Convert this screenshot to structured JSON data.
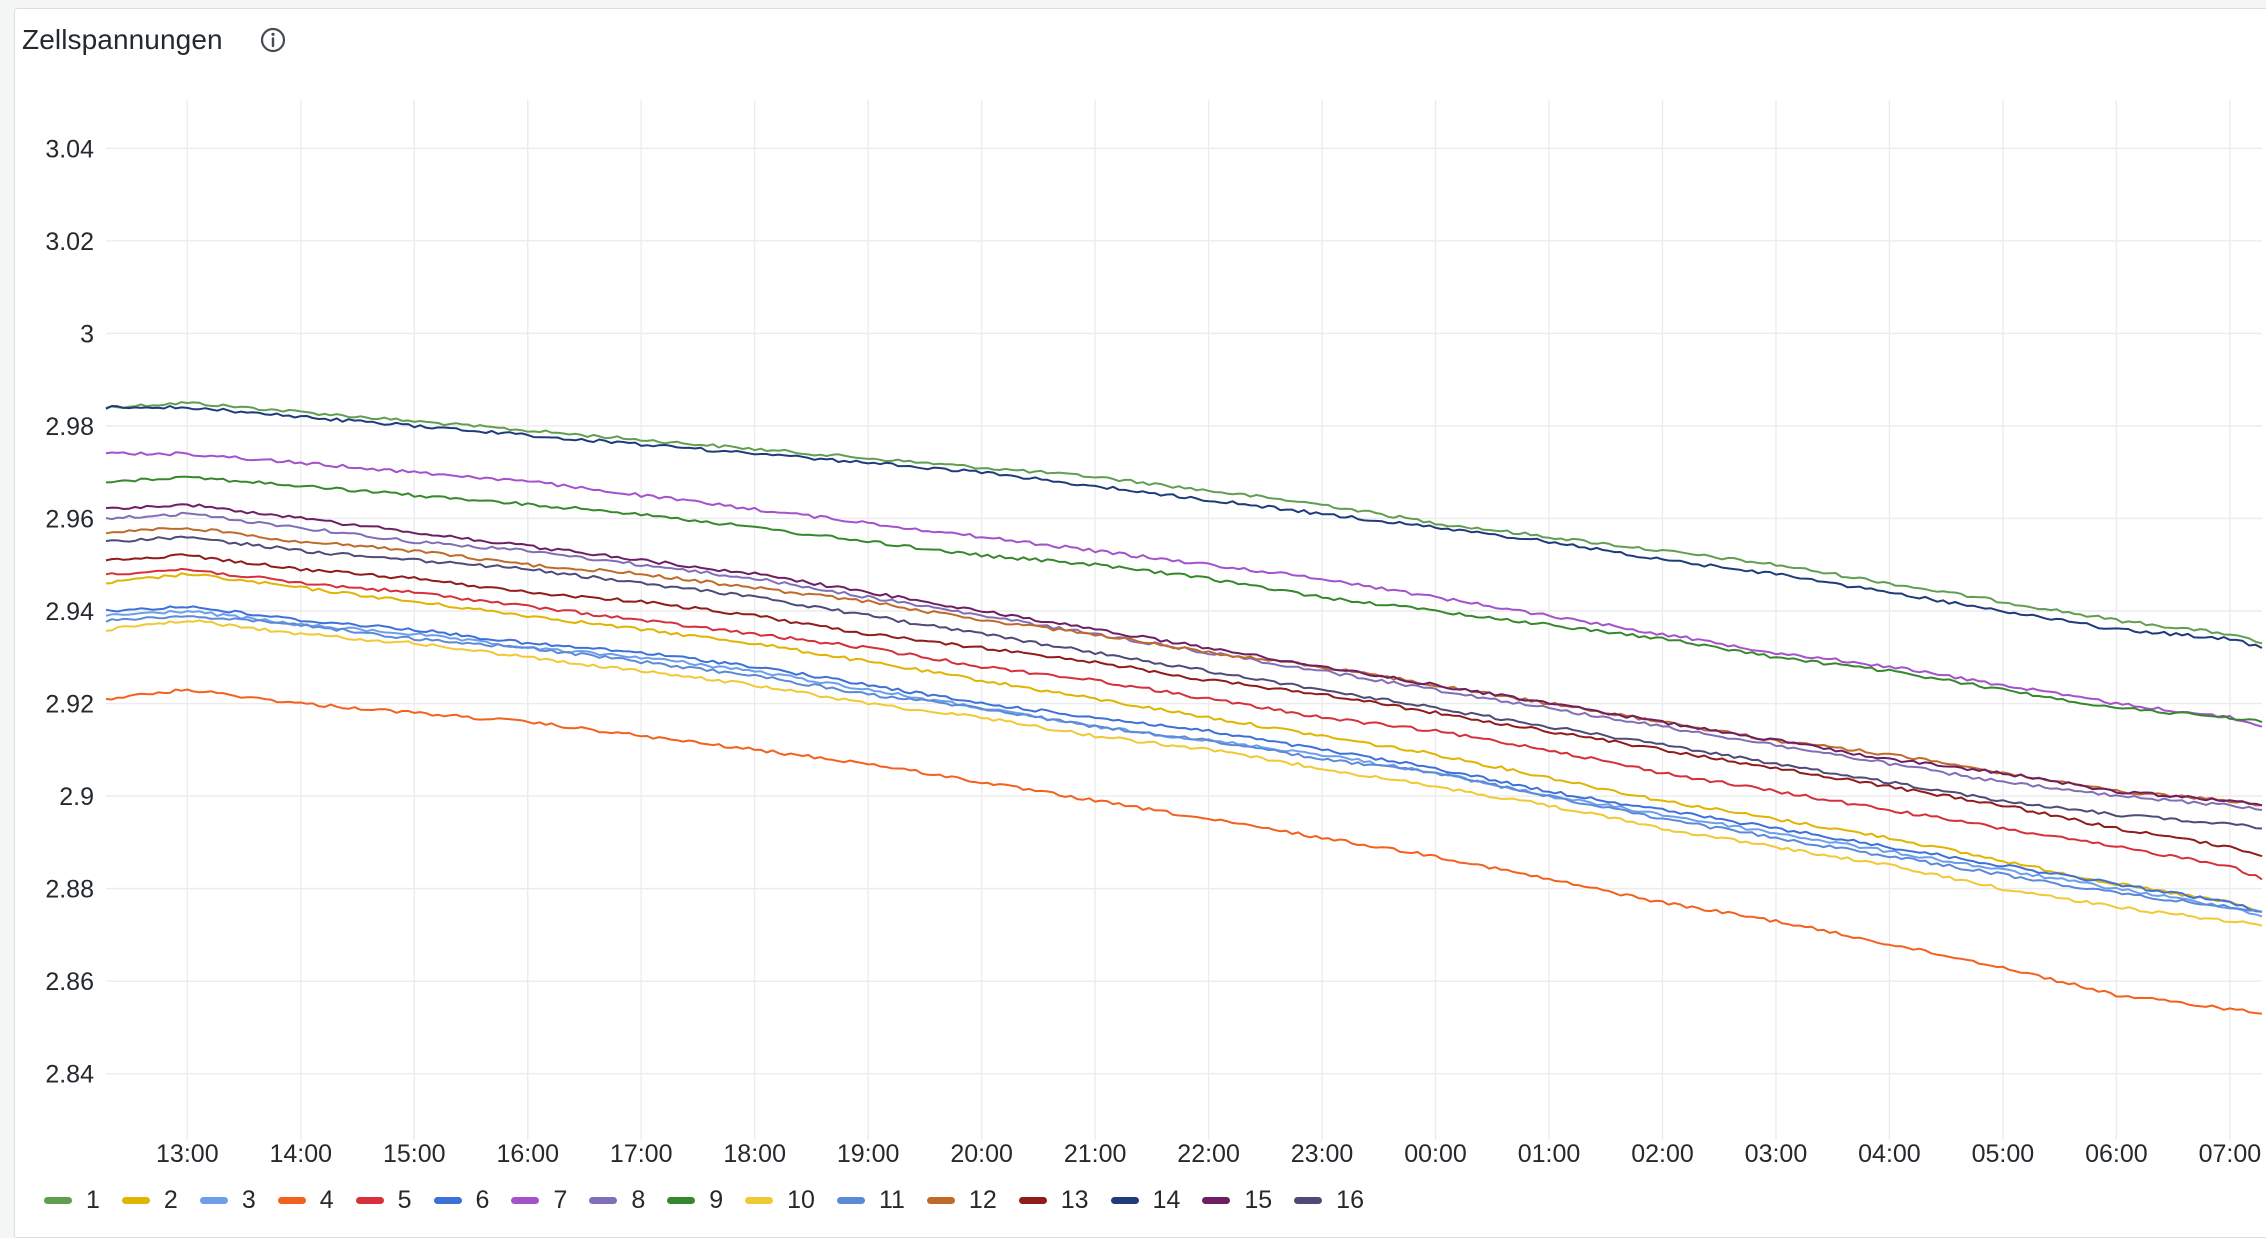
{
  "panel": {
    "title": "Zellspannungen",
    "info_icon": "info-circle-icon"
  },
  "chart_data": {
    "type": "line",
    "title": "Zellspannungen",
    "xlabel": "",
    "ylabel": "",
    "x_ticks": [
      "13:00",
      "14:00",
      "15:00",
      "16:00",
      "17:00",
      "18:00",
      "19:00",
      "20:00",
      "21:00",
      "22:00",
      "23:00",
      "00:00",
      "01:00",
      "02:00",
      "03:00",
      "04:00",
      "05:00",
      "06:00",
      "07:00"
    ],
    "x_range": [
      "12:17",
      "07:17"
    ],
    "y_ticks": [
      "2.84",
      "2.86",
      "2.88",
      "2.9",
      "2.92",
      "2.94",
      "2.96",
      "2.98",
      "3",
      "3.02",
      "3.04"
    ],
    "ylim": [
      2.83,
      3.05
    ],
    "grid": true,
    "legend_position": "bottom-left",
    "x": [
      "12:17",
      "13:00",
      "14:00",
      "15:00",
      "16:00",
      "17:00",
      "18:00",
      "19:00",
      "20:00",
      "21:00",
      "22:00",
      "23:00",
      "00:00",
      "01:00",
      "02:00",
      "03:00",
      "04:00",
      "05:00",
      "06:00",
      "07:00",
      "07:17"
    ],
    "series": [
      {
        "name": "1",
        "color": "#629e51",
        "values": [
          2.984,
          2.985,
          2.983,
          2.981,
          2.979,
          2.977,
          2.975,
          2.973,
          2.971,
          2.969,
          2.966,
          2.963,
          2.959,
          2.956,
          2.953,
          2.95,
          2.946,
          2.942,
          2.938,
          2.935,
          2.933
        ]
      },
      {
        "name": "2",
        "color": "#e0b400",
        "values": [
          2.946,
          2.948,
          2.945,
          2.942,
          2.939,
          2.936,
          2.933,
          2.929,
          2.925,
          2.921,
          2.917,
          2.913,
          2.909,
          2.904,
          2.899,
          2.895,
          2.891,
          2.886,
          2.881,
          2.877,
          2.875
        ]
      },
      {
        "name": "3",
        "color": "#6d9eeb",
        "values": [
          2.939,
          2.94,
          2.937,
          2.935,
          2.932,
          2.93,
          2.927,
          2.923,
          2.919,
          2.915,
          2.912,
          2.909,
          2.905,
          2.9,
          2.896,
          2.892,
          2.888,
          2.884,
          2.88,
          2.876,
          2.874
        ]
      },
      {
        "name": "4",
        "color": "#f2611d",
        "values": [
          2.921,
          2.923,
          2.92,
          2.918,
          2.916,
          2.913,
          2.91,
          2.907,
          2.903,
          2.899,
          2.895,
          2.891,
          2.887,
          2.882,
          2.877,
          2.873,
          2.868,
          2.863,
          2.857,
          2.854,
          2.853
        ]
      },
      {
        "name": "5",
        "color": "#d6303a",
        "values": [
          2.948,
          2.949,
          2.946,
          2.944,
          2.941,
          2.938,
          2.935,
          2.932,
          2.928,
          2.925,
          2.921,
          2.917,
          2.914,
          2.91,
          2.905,
          2.901,
          2.897,
          2.893,
          2.889,
          2.885,
          2.882
        ]
      },
      {
        "name": "6",
        "color": "#3d71d9",
        "values": [
          2.94,
          2.941,
          2.938,
          2.936,
          2.933,
          2.931,
          2.928,
          2.924,
          2.92,
          2.917,
          2.914,
          2.91,
          2.906,
          2.901,
          2.897,
          2.893,
          2.889,
          2.885,
          2.881,
          2.877,
          2.875
        ]
      },
      {
        "name": "7",
        "color": "#a352cc",
        "values": [
          2.974,
          2.974,
          2.972,
          2.97,
          2.968,
          2.965,
          2.962,
          2.959,
          2.956,
          2.953,
          2.95,
          2.947,
          2.943,
          2.939,
          2.935,
          2.931,
          2.928,
          2.924,
          2.92,
          2.917,
          2.915
        ]
      },
      {
        "name": "8",
        "color": "#806eb7",
        "values": [
          2.96,
          2.961,
          2.958,
          2.955,
          2.953,
          2.95,
          2.947,
          2.943,
          2.939,
          2.935,
          2.931,
          2.927,
          2.923,
          2.919,
          2.915,
          2.911,
          2.907,
          2.903,
          2.9,
          2.898,
          2.897
        ]
      },
      {
        "name": "9",
        "color": "#37872d",
        "values": [
          2.968,
          2.969,
          2.967,
          2.965,
          2.963,
          2.961,
          2.958,
          2.955,
          2.952,
          2.95,
          2.947,
          2.943,
          2.94,
          2.937,
          2.934,
          2.93,
          2.927,
          2.923,
          2.919,
          2.917,
          2.916
        ]
      },
      {
        "name": "10",
        "color": "#f0c934",
        "values": [
          2.936,
          2.938,
          2.935,
          2.933,
          2.93,
          2.927,
          2.924,
          2.92,
          2.917,
          2.913,
          2.91,
          2.906,
          2.902,
          2.898,
          2.893,
          2.889,
          2.885,
          2.88,
          2.876,
          2.873,
          2.872
        ]
      },
      {
        "name": "11",
        "color": "#5c8ad6",
        "values": [
          2.938,
          2.939,
          2.937,
          2.934,
          2.932,
          2.929,
          2.926,
          2.922,
          2.919,
          2.915,
          2.912,
          2.908,
          2.905,
          2.9,
          2.895,
          2.891,
          2.887,
          2.883,
          2.879,
          2.876,
          2.875
        ]
      },
      {
        "name": "12",
        "color": "#c06a2a",
        "values": [
          2.957,
          2.958,
          2.955,
          2.953,
          2.95,
          2.948,
          2.945,
          2.942,
          2.938,
          2.935,
          2.931,
          2.928,
          2.924,
          2.92,
          2.916,
          2.912,
          2.909,
          2.905,
          2.901,
          2.899,
          2.898
        ]
      },
      {
        "name": "13",
        "color": "#8f1b1b",
        "values": [
          2.951,
          2.952,
          2.949,
          2.947,
          2.944,
          2.942,
          2.939,
          2.935,
          2.932,
          2.929,
          2.925,
          2.922,
          2.918,
          2.914,
          2.91,
          2.906,
          2.902,
          2.898,
          2.893,
          2.889,
          2.887
        ]
      },
      {
        "name": "14",
        "color": "#1f3b7a",
        "values": [
          2.984,
          2.984,
          2.982,
          2.98,
          2.978,
          2.976,
          2.974,
          2.972,
          2.97,
          2.967,
          2.964,
          2.961,
          2.958,
          2.955,
          2.951,
          2.948,
          2.944,
          2.94,
          2.936,
          2.934,
          2.932
        ]
      },
      {
        "name": "15",
        "color": "#6d1f62",
        "values": [
          2.962,
          2.963,
          2.96,
          2.957,
          2.954,
          2.951,
          2.948,
          2.944,
          2.94,
          2.936,
          2.932,
          2.928,
          2.924,
          2.92,
          2.916,
          2.912,
          2.908,
          2.905,
          2.901,
          2.899,
          2.898
        ]
      },
      {
        "name": "16",
        "color": "#4f4a78",
        "values": [
          2.955,
          2.956,
          2.953,
          2.951,
          2.949,
          2.946,
          2.943,
          2.939,
          2.935,
          2.931,
          2.927,
          2.923,
          2.919,
          2.915,
          2.911,
          2.907,
          2.903,
          2.899,
          2.896,
          2.894,
          2.893
        ]
      }
    ]
  }
}
